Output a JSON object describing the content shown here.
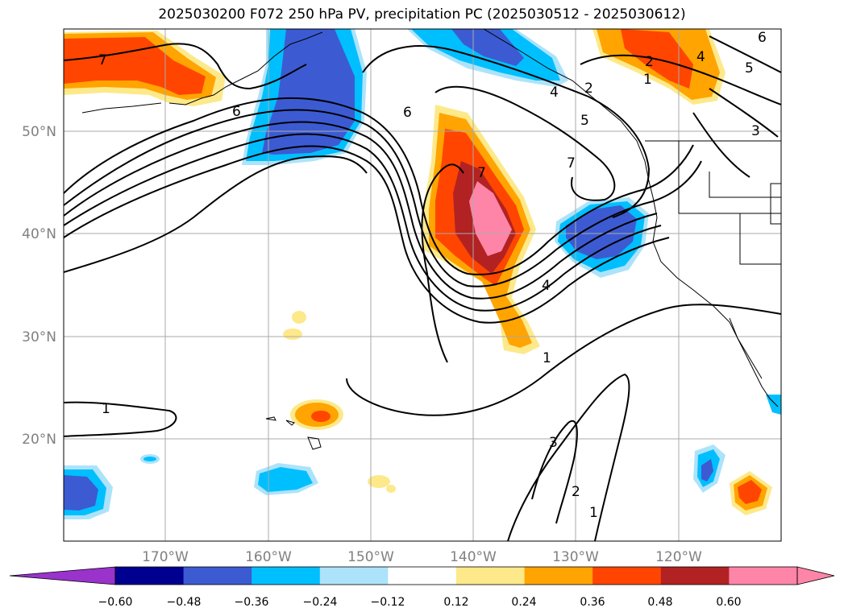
{
  "title": "2025030200 F072 250 hPa PV, precipitation PC (2025030512 - 2025030612)",
  "lat_labels": [
    "50°N",
    "40°N",
    "30°N",
    "20°N"
  ],
  "lon_labels": [
    "170°W",
    "160°W",
    "150°W",
    "140°W",
    "130°W",
    "120°W"
  ],
  "colorbar": {
    "ticks": [
      "−0.60",
      "−0.48",
      "−0.36",
      "−0.24",
      "−0.12",
      "0.12",
      "0.24",
      "0.36",
      "0.48",
      "0.60"
    ],
    "colors": [
      "#9933cc",
      "#000090",
      "#3c5bd2",
      "#00bfff",
      "#ade3fa",
      "#ffffff",
      "#fde98a",
      "#ffa400",
      "#ff4500",
      "#b22222",
      "#ff85a8",
      "#ff85a8"
    ]
  },
  "contour_labels": [
    "7",
    "6",
    "6",
    "7",
    "7",
    "4",
    "1",
    "1",
    "3",
    "2",
    "1",
    "2",
    "4",
    "5",
    "3",
    "1",
    "2",
    "4",
    "5",
    "6"
  ],
  "fill_colors": {
    "dark_blue": "#3c5bd2",
    "blue": "#00bfff",
    "yellow": "#fde98a",
    "orange": "#ffa400",
    "red_orange": "#ff4500",
    "dark_red": "#b22222",
    "pink": "#ff85a8"
  }
}
